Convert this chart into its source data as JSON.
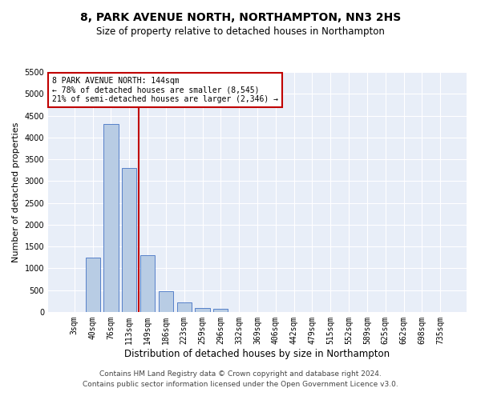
{
  "title": "8, PARK AVENUE NORTH, NORTHAMPTON, NN3 2HS",
  "subtitle": "Size of property relative to detached houses in Northampton",
  "xlabel": "Distribution of detached houses by size in Northampton",
  "ylabel": "Number of detached properties",
  "categories": [
    "3sqm",
    "40sqm",
    "76sqm",
    "113sqm",
    "149sqm",
    "186sqm",
    "223sqm",
    "259sqm",
    "296sqm",
    "332sqm",
    "369sqm",
    "406sqm",
    "442sqm",
    "479sqm",
    "515sqm",
    "552sqm",
    "589sqm",
    "625sqm",
    "662sqm",
    "698sqm",
    "735sqm"
  ],
  "values": [
    0,
    1250,
    4300,
    3300,
    1300,
    480,
    220,
    100,
    70,
    0,
    0,
    0,
    0,
    0,
    0,
    0,
    0,
    0,
    0,
    0,
    0
  ],
  "bar_color": "#b8cce4",
  "bar_edge_color": "#4472c4",
  "ylim": [
    0,
    5500
  ],
  "yticks": [
    0,
    500,
    1000,
    1500,
    2000,
    2500,
    3000,
    3500,
    4000,
    4500,
    5000,
    5500
  ],
  "vline_color": "#c00000",
  "vline_x_index": 4,
  "annotation_text": "8 PARK AVENUE NORTH: 144sqm\n← 78% of detached houses are smaller (8,545)\n21% of semi-detached houses are larger (2,346) →",
  "annotation_box_color": "#c00000",
  "footer1": "Contains HM Land Registry data © Crown copyright and database right 2024.",
  "footer2": "Contains public sector information licensed under the Open Government Licence v3.0.",
  "background_color": "#e8eef8",
  "grid_color": "#ffffff",
  "title_fontsize": 10,
  "subtitle_fontsize": 8.5,
  "ylabel_fontsize": 8,
  "xlabel_fontsize": 8.5,
  "tick_fontsize": 7,
  "annot_fontsize": 7,
  "footer_fontsize": 6.5
}
